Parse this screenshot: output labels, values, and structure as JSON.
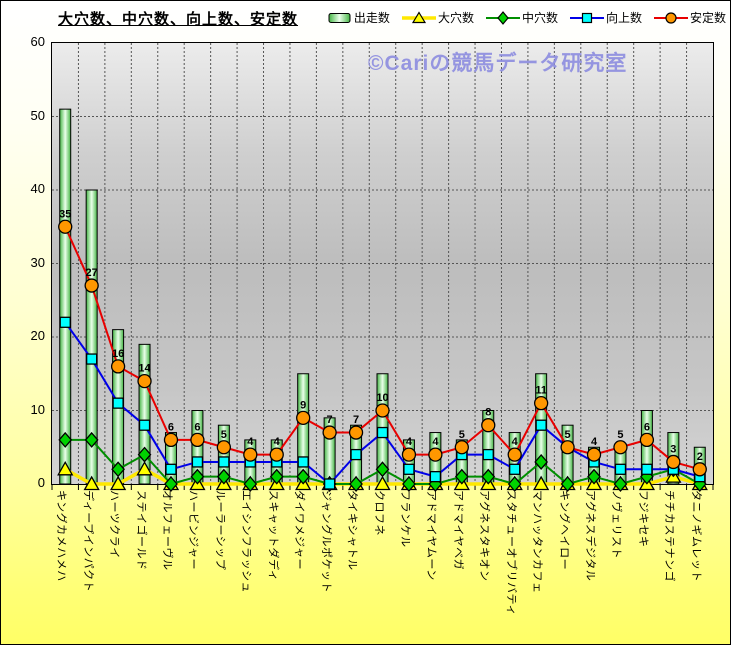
{
  "title": "大穴数、中穴数、向上数、安定数",
  "watermark": "©Cariの競馬データ研究室",
  "y_axis": {
    "ticks": [
      0,
      10,
      20,
      30,
      40,
      50,
      60
    ]
  },
  "colors": {
    "frame_background_top": "#ffffff",
    "frame_background_bottom": "#ffff66",
    "plot_background": "#c0c0c0",
    "gridline": "#555555",
    "watermark_color": "#8d8de0"
  },
  "chart_data": {
    "type": "combo",
    "title": "大穴数、中穴数、向上数、安定数",
    "ylim": [
      0,
      60
    ],
    "grid": true,
    "legend_position": "top-right",
    "categories": [
      "キングカメハメハ",
      "ディープインパクト",
      "ハーツクライ",
      "ステイゴールド",
      "オルフェーヴル",
      "ハービンジャー",
      "ルーラーシップ",
      "エイシンフラッシュ",
      "スキャットダディ",
      "ダイワメジャー",
      "ジャングルポケット",
      "タイキシャトル",
      "クロフネ",
      "フランケル",
      "アドマイヤムーン",
      "アドマイヤベガ",
      "アグネスタキオン",
      "スタチューオブリバティ",
      "マンハッタンカフェ",
      "キングヘイロー",
      "アグネスデジタル",
      "ノヴェリスト",
      "フジキセキ",
      "チチカステナンゴ",
      "タニノギムレット"
    ],
    "series": [
      {
        "name": "出走数",
        "kind": "bar",
        "color": "#44b544",
        "values": [
          51,
          40,
          21,
          19,
          7,
          10,
          8,
          6,
          6,
          15,
          9,
          8,
          15,
          6,
          7,
          6,
          10,
          7,
          15,
          8,
          5,
          5,
          10,
          7,
          5
        ]
      },
      {
        "name": "大穴数",
        "kind": "line",
        "marker": "triangle",
        "line_color": "#ffe800",
        "marker_color": "#ffff00",
        "line_width": 3.5,
        "values": [
          2,
          0,
          0,
          2,
          0,
          0,
          0,
          0,
          0,
          0,
          0,
          0,
          0,
          0,
          0,
          0,
          0,
          0,
          0,
          0,
          0,
          0,
          0,
          1,
          0
        ]
      },
      {
        "name": "中穴数",
        "kind": "line",
        "marker": "diamond",
        "line_color": "#008f00",
        "marker_color": "#00d200",
        "line_width": 2,
        "values": [
          6,
          6,
          2,
          4,
          0,
          1,
          1,
          0,
          1,
          1,
          0,
          0,
          2,
          0,
          0,
          1,
          1,
          0,
          3,
          0,
          1,
          0,
          1,
          2,
          0
        ]
      },
      {
        "name": "向上数",
        "kind": "line",
        "marker": "square",
        "line_color": "#0000e8",
        "marker_color": "#00ffff",
        "line_width": 2,
        "values": [
          22,
          17,
          11,
          8,
          2,
          3,
          3,
          3,
          3,
          3,
          0,
          4,
          7,
          2,
          1,
          4,
          4,
          2,
          8,
          5,
          3,
          2,
          2,
          2,
          1
        ]
      },
      {
        "name": "安定数",
        "kind": "line",
        "marker": "circle",
        "line_color": "#e80000",
        "marker_color": "#ff9700",
        "line_width": 2,
        "show_labels": true,
        "values": [
          35,
          27,
          16,
          14,
          6,
          6,
          5,
          4,
          4,
          9,
          7,
          7,
          10,
          4,
          4,
          5,
          8,
          4,
          11,
          5,
          4,
          5,
          6,
          3,
          2
        ]
      }
    ]
  }
}
